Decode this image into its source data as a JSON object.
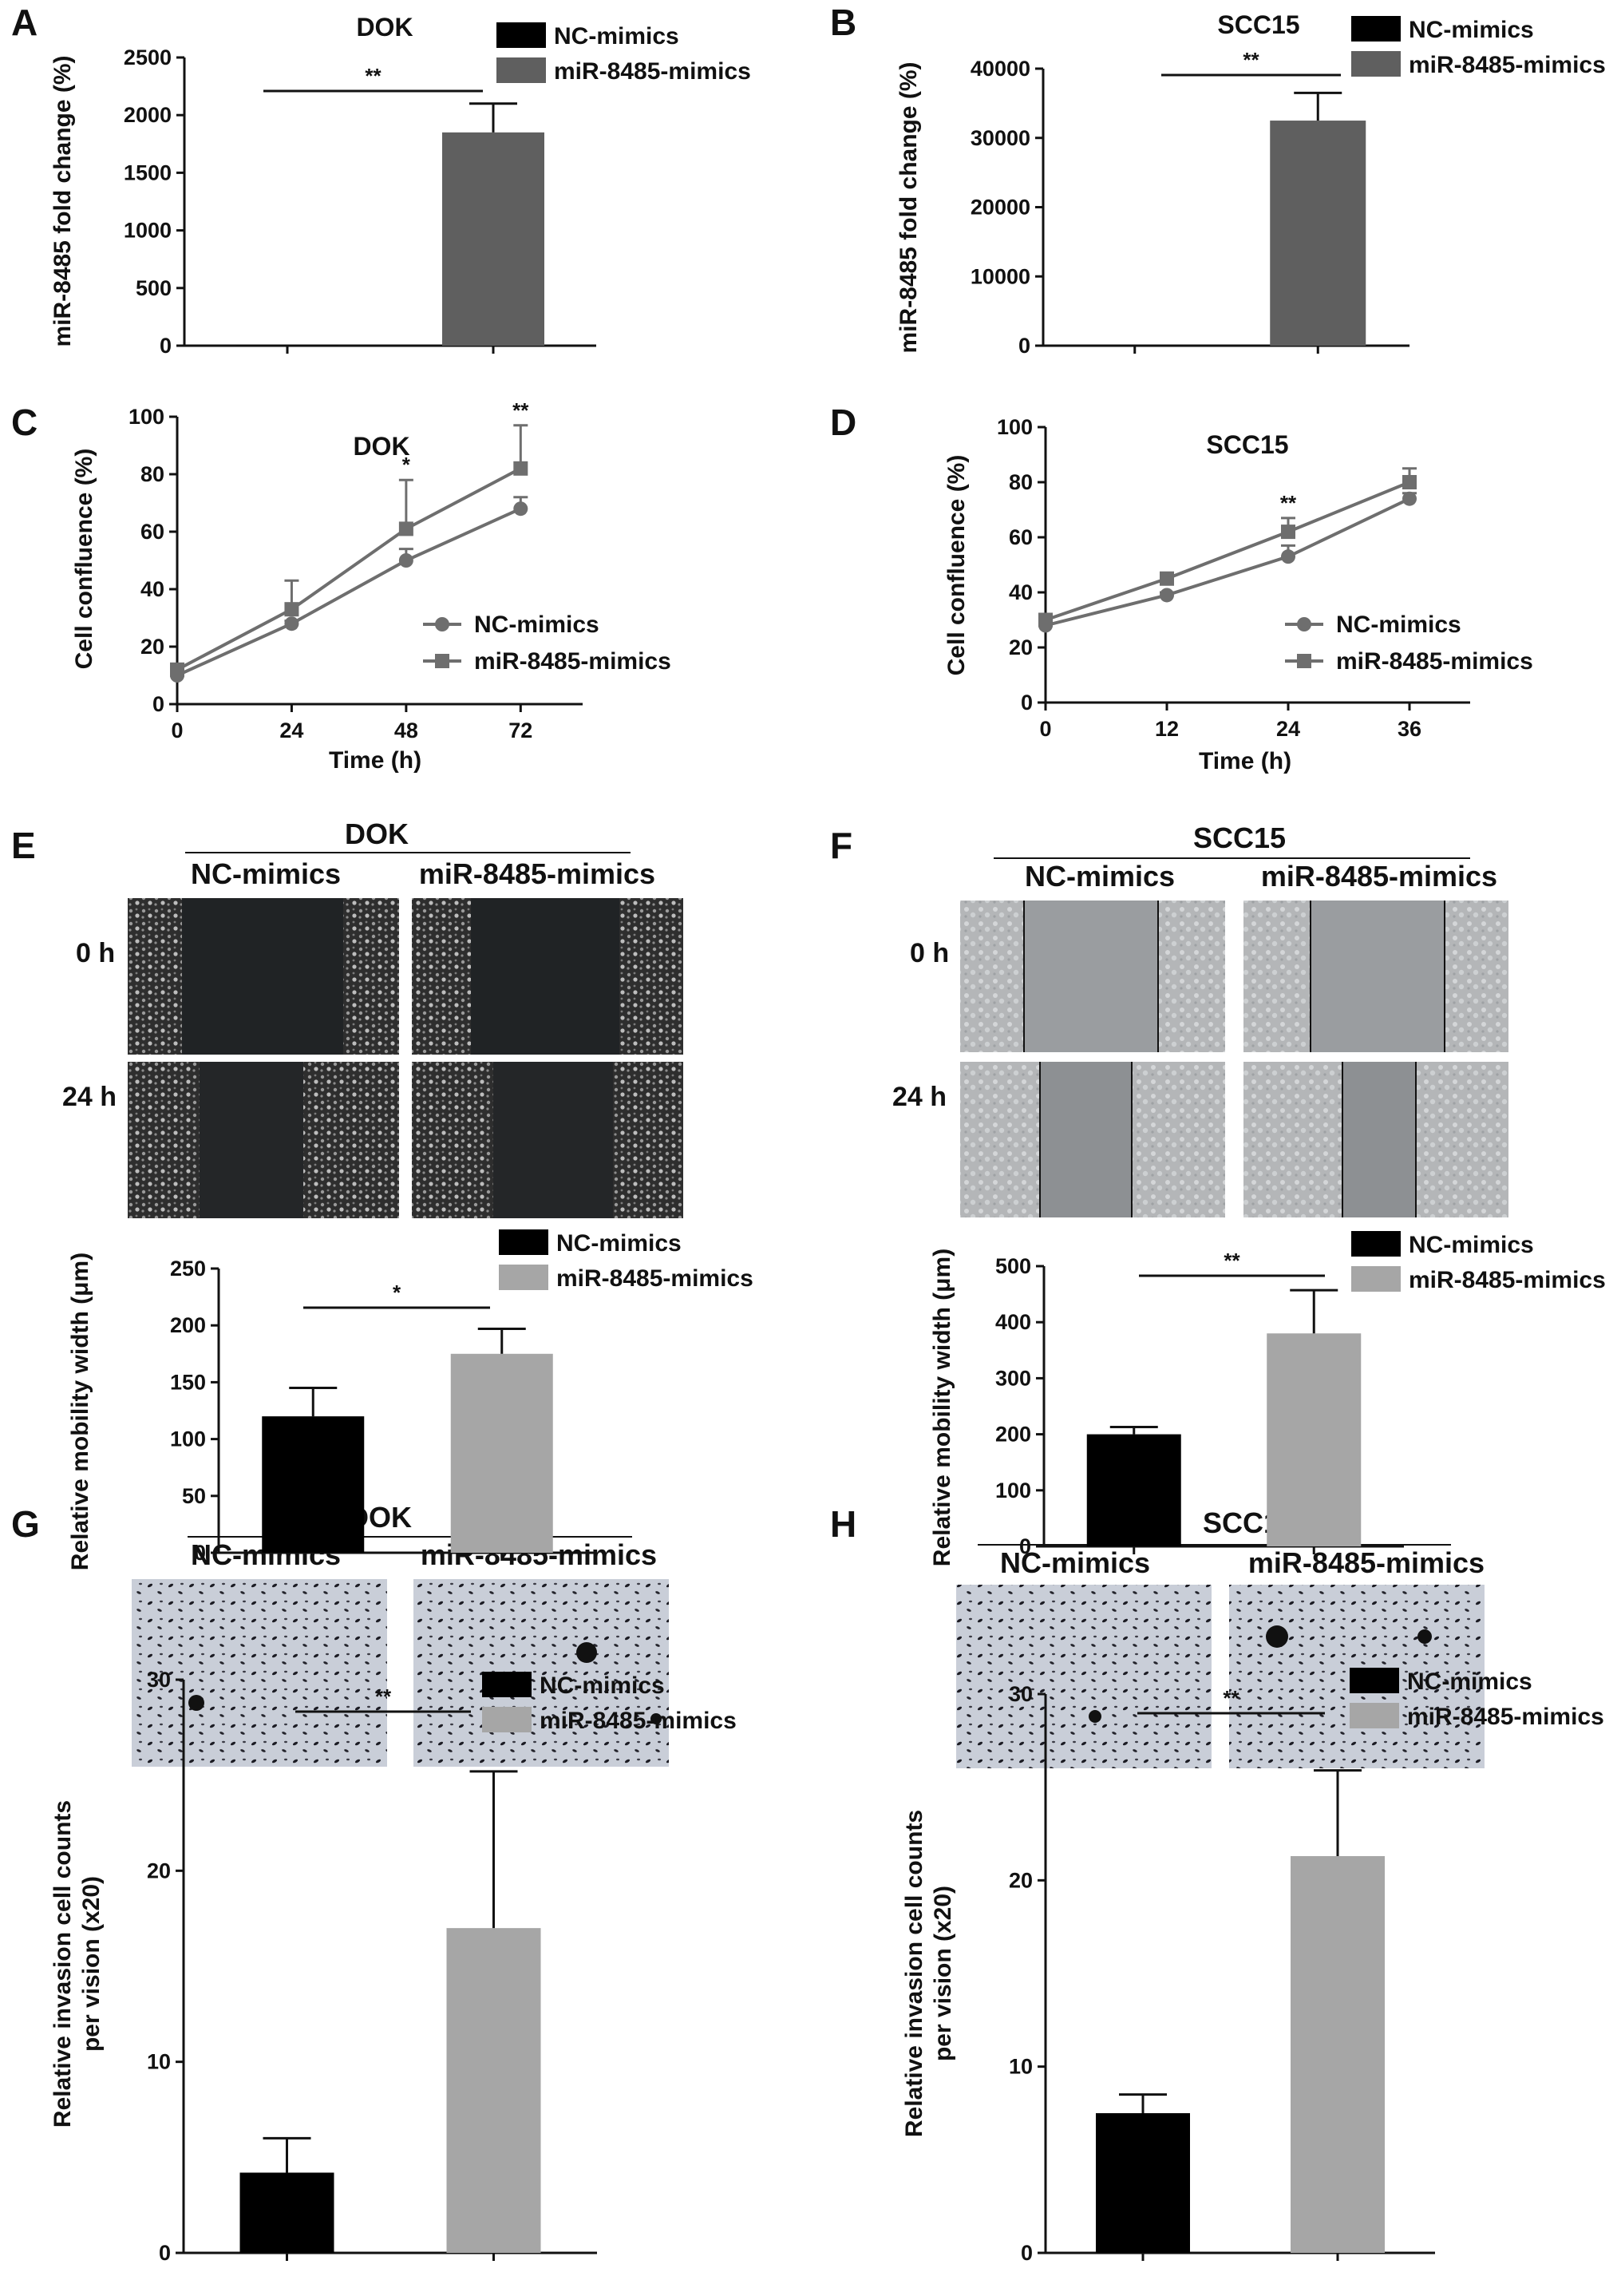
{
  "figure": {
    "panel_labels": [
      "A",
      "B",
      "C",
      "D",
      "E",
      "F",
      "G",
      "H"
    ]
  },
  "colors": {
    "nc_dark": "#000000",
    "mir_dark": "#5f5f5f",
    "mir_light": "#a6a6a6",
    "line_nc": "#6e6e6e",
    "line_mir": "#6e6e6e"
  },
  "micrographs": {
    "E": {
      "title": "DOK",
      "columns": [
        "NC-mimics",
        "miR-8485-mimics"
      ],
      "rows": [
        "0 h",
        "24 h"
      ]
    },
    "F": {
      "title": "SCC15",
      "columns": [
        "NC-mimics",
        "miR-8485-mimics"
      ],
      "rows": [
        "0 h",
        "24 h"
      ]
    },
    "G": {
      "title": "DOK",
      "columns": [
        "NC-mimics",
        "miR-8485-mimics"
      ]
    },
    "H": {
      "title": "SCC15",
      "columns": [
        "NC-mimics",
        "miR-8485-mimics"
      ]
    }
  },
  "chart_data": [
    {
      "panel": "A",
      "type": "bar",
      "title": "DOK",
      "categories": [
        "NC-mimics",
        "miR-8485-mimics"
      ],
      "values": [
        1,
        1850
      ],
      "errors": [
        0,
        250
      ],
      "ylabel": "miR-8485 fold change (%)",
      "ylim": [
        0,
        2500
      ],
      "yticks": [
        0,
        500,
        1000,
        1500,
        2000,
        2500
      ],
      "significance": "**",
      "legend": [
        "NC-mimics",
        "miR-8485-mimics"
      ]
    },
    {
      "panel": "B",
      "type": "bar",
      "title": "SCC15",
      "categories": [
        "NC-mimics",
        "miR-8485-mimics"
      ],
      "values": [
        1,
        32500
      ],
      "errors": [
        0,
        4000
      ],
      "ylabel": "miR-8485 fold change (%)",
      "ylim": [
        0,
        40000
      ],
      "yticks": [
        0,
        10000,
        20000,
        30000,
        40000
      ],
      "significance": "**",
      "legend": [
        "NC-mimics",
        "miR-8485-mimics"
      ]
    },
    {
      "panel": "C",
      "type": "line",
      "title": "DOK",
      "x": [
        0,
        24,
        48,
        72
      ],
      "xticks": [
        0,
        24,
        48,
        72
      ],
      "xlabel": "Time (h)",
      "ylabel": "Cell confluence (%)",
      "ylim": [
        0,
        100
      ],
      "yticks": [
        0,
        20,
        40,
        60,
        80,
        100
      ],
      "xlim": [
        0,
        85
      ],
      "series": [
        {
          "name": "NC-mimics",
          "values": [
            10,
            28,
            50,
            68
          ],
          "errors": [
            1,
            1,
            4,
            4
          ],
          "marker": "circle"
        },
        {
          "name": "miR-8485-mimics",
          "values": [
            12,
            33,
            61,
            82
          ],
          "errors": [
            2,
            10,
            17,
            15
          ],
          "marker": "square"
        }
      ],
      "annotations": [
        {
          "x": 48,
          "text": "*"
        },
        {
          "x": 72,
          "text": "**"
        }
      ]
    },
    {
      "panel": "D",
      "type": "line",
      "title": "SCC15",
      "x": [
        0,
        12,
        24,
        36
      ],
      "xticks": [
        0,
        12,
        24,
        36
      ],
      "xlabel": "Time (h)",
      "ylabel": "Cell confluence (%)",
      "ylim": [
        0,
        100
      ],
      "yticks": [
        0,
        20,
        40,
        60,
        80,
        100
      ],
      "xlim": [
        0,
        42
      ],
      "series": [
        {
          "name": "NC-mimics",
          "values": [
            28,
            39,
            53,
            74
          ],
          "errors": [
            1,
            1,
            4,
            2
          ],
          "marker": "circle"
        },
        {
          "name": "miR-8485-mimics",
          "values": [
            30,
            45,
            62,
            80
          ],
          "errors": [
            2,
            2,
            5,
            5
          ],
          "marker": "square"
        }
      ],
      "annotations": [
        {
          "x": 24,
          "text": "**"
        }
      ]
    },
    {
      "panel": "E",
      "type": "bar",
      "categories": [
        "NC-mimics",
        "miR-8485-mimics"
      ],
      "values": [
        120,
        175
      ],
      "errors": [
        25,
        22
      ],
      "ylabel": "Relative mobility width (μm)",
      "ylim": [
        0,
        250
      ],
      "yticks": [
        0,
        50,
        100,
        150,
        200,
        250
      ],
      "significance": "*",
      "legend": [
        "NC-mimics",
        "miR-8485-mimics"
      ]
    },
    {
      "panel": "F",
      "type": "bar",
      "categories": [
        "NC-mimics",
        "miR-8485-mimics"
      ],
      "values": [
        200,
        380
      ],
      "errors": [
        13,
        77
      ],
      "ylabel": "Relative mobility width (μm)",
      "ylim": [
        0,
        500
      ],
      "yticks": [
        0,
        100,
        200,
        300,
        400,
        500
      ],
      "significance": "**",
      "legend": [
        "NC-mimics",
        "miR-8485-mimics"
      ]
    },
    {
      "panel": "G",
      "type": "bar",
      "categories": [
        "NC-mimics",
        "miR-8485-mimics"
      ],
      "values": [
        4.2,
        17
      ],
      "errors": [
        1.8,
        8.2
      ],
      "ylabel": [
        "Relative invasion cell counts",
        "per vision (x20)"
      ],
      "ylim": [
        0,
        30
      ],
      "yticks": [
        0,
        10,
        20,
        30
      ],
      "significance": "**",
      "legend": [
        "NC-mimics",
        "miR-8485-mimics"
      ]
    },
    {
      "panel": "H",
      "type": "bar",
      "categories": [
        "NC-mimics",
        "miR-8485-mimics"
      ],
      "values": [
        7.5,
        21.3
      ],
      "errors": [
        1,
        4.6
      ],
      "ylabel": [
        "Relative invasion cell counts",
        "per vision (x20)"
      ],
      "ylim": [
        0,
        30
      ],
      "yticks": [
        0,
        10,
        20,
        30
      ],
      "significance": "**",
      "legend": [
        "NC-mimics",
        "miR-8485-mimics"
      ]
    }
  ]
}
